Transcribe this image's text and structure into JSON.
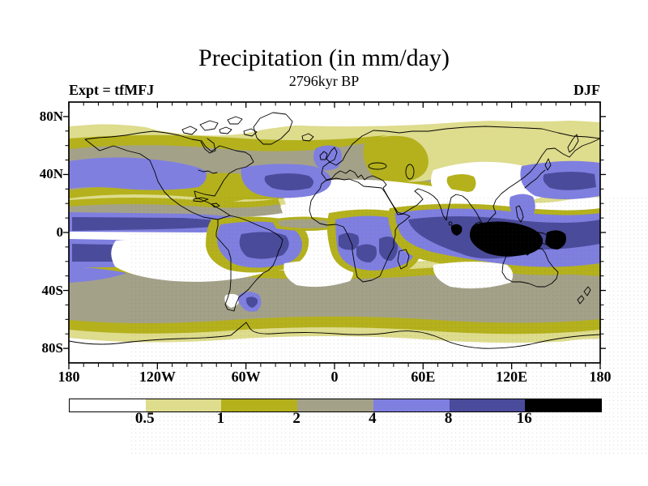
{
  "chart_data": {
    "type": "heatmap",
    "title": "Precipitation (in mm/day)",
    "subtitle": "2796kyr BP",
    "annotation_left": "Expt = tfMFJ",
    "annotation_right": "DJF",
    "variable": "Precipitation",
    "units": "mm/day",
    "experiment_id": "tfMFJ",
    "season": "DJF",
    "time_label": "2796kyr BP",
    "projection": "global latitude-longitude map, 90N to 90S, 180W to 180E, centered on 0",
    "contour_levels": [
      0.5,
      1,
      2,
      4,
      8,
      16
    ],
    "colorbar": {
      "labels": [
        "0.5",
        "1",
        "2",
        "4",
        "8",
        "16"
      ],
      "segments": [
        {
          "range": "< 0.5",
          "color": "#ffffff"
        },
        {
          "range": "0.5 - 1",
          "color": "#dedc8d"
        },
        {
          "range": "1 - 2",
          "color": "#b4b11d"
        },
        {
          "range": "2 - 4",
          "color": "#a4a189"
        },
        {
          "range": "4 - 8",
          "color": "#7f7fe0"
        },
        {
          "range": "8 - 16",
          "color": "#4b4b9c"
        },
        {
          "range": "> 16",
          "color": "#000000"
        }
      ]
    },
    "x_axis": {
      "ticks": [
        "180",
        "120W",
        "60W",
        "0",
        "60E",
        "120E",
        "180"
      ],
      "deg": [
        -180,
        -120,
        -60,
        0,
        60,
        120,
        180
      ],
      "minor_step_deg": 10
    },
    "y_axis": {
      "ticks": [
        "80N",
        "40N",
        "0",
        "40S",
        "80S"
      ],
      "deg": [
        80,
        40,
        0,
        -40,
        -80
      ],
      "minor_step_deg": 10
    },
    "features": [
      "Maximum precipitation (>16 mm/day, black) over the Maritime Continent and western equatorial Pacific",
      "8-16 mm/day ITCZ band across the tropical Indian Ocean and west Pacific",
      "Double ITCZ bands (4-16 mm/day) straddling a dry equatorial tongue in the central/east Pacific",
      "Wet regions (4-8 mm/day, with 8-16 cores) over Amazonia and central-southern Africa",
      "Dry zones (<0.5 mm/day) over Sahara, Arabia, India, interior Asia and eastern subtropical oceans",
      "Mid-latitude storm tracks (4-8 mm/day) over North Pacific, North Atlantic and NW Europe",
      "2-4 mm/day belt across the Southern Ocean, dry Arctic and Antarctica"
    ]
  }
}
